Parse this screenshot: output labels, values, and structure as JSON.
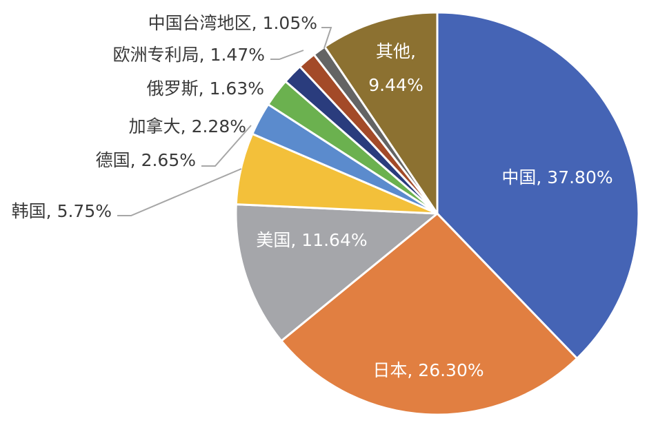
{
  "chart_data": {
    "type": "pie",
    "title": "",
    "start_angle_deg": 0,
    "direction": "clockwise",
    "legend": "none",
    "slices": [
      {
        "label": "中国",
        "value": 37.8,
        "display": "中国, 37.80%",
        "color": "#4564b5",
        "label_placement": "inside"
      },
      {
        "label": "日本",
        "value": 26.3,
        "display": "日本, 26.30%",
        "color": "#e17f41",
        "label_placement": "inside"
      },
      {
        "label": "美国",
        "value": 11.64,
        "display": "美国, 11.64%",
        "color": "#a5a6aa",
        "label_placement": "inside"
      },
      {
        "label": "韩国",
        "value": 5.75,
        "display": "韩国, 5.75%",
        "color": "#f3c03a",
        "label_placement": "outside"
      },
      {
        "label": "德国",
        "value": 2.65,
        "display": "德国, 2.65%",
        "color": "#5b8bcd",
        "label_placement": "outside"
      },
      {
        "label": "加拿大",
        "value": 2.28,
        "display": "加拿大, 2.28%",
        "color": "#6bb14f",
        "label_placement": "outside"
      },
      {
        "label": "俄罗斯",
        "value": 1.63,
        "display": "俄罗斯, 1.63%",
        "color": "#2a3c7d",
        "label_placement": "outside"
      },
      {
        "label": "欧洲专利局",
        "value": 1.47,
        "display": "欧洲专利局, 1.47%",
        "color": "#a34a28",
        "label_placement": "outside"
      },
      {
        "label": "中国台湾地区",
        "value": 1.05,
        "display": "中国台湾地区, 1.05%",
        "color": "#646464",
        "label_placement": "outside"
      },
      {
        "label": "其他",
        "value": 9.44,
        "display": "其他,\n9.44%",
        "line1": "其他,",
        "line2": "9.44%",
        "color": "#8c7131",
        "label_placement": "inside"
      }
    ]
  }
}
